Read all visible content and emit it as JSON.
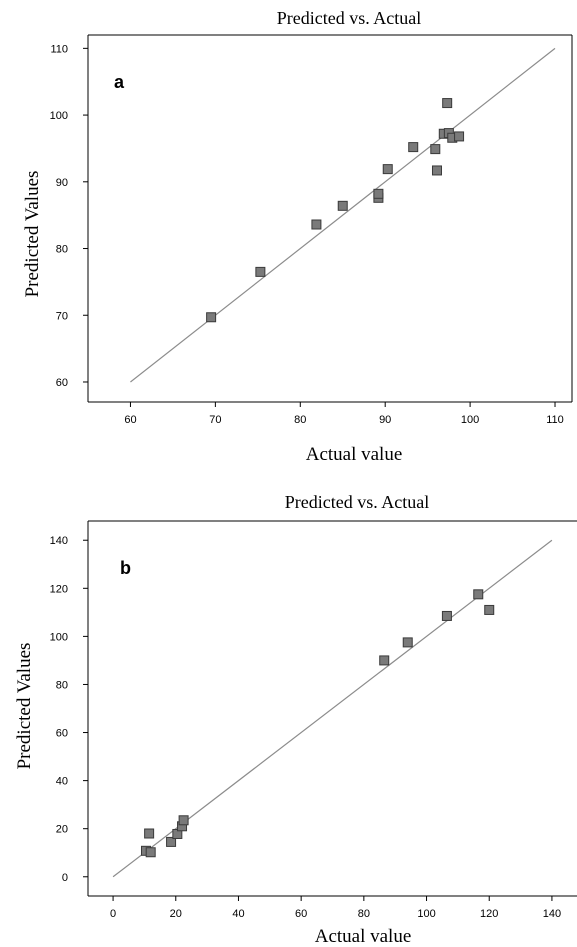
{
  "chart_data": [
    {
      "type": "scatter",
      "panel_label": "a",
      "title": "Predicted vs. Actual",
      "xlabel": "Actual value",
      "ylabel": "Predicted Values",
      "xlim": [
        55,
        112
      ],
      "ylim": [
        57,
        112
      ],
      "xticks": [
        60,
        70,
        80,
        90,
        100,
        110
      ],
      "yticks": [
        60,
        70,
        80,
        90,
        100,
        110
      ],
      "ytick_labels": [
        "60",
        "70",
        "80",
        "90",
        "100",
        "110"
      ],
      "reference_line": {
        "from": [
          60,
          60
        ],
        "to": [
          110,
          110
        ]
      },
      "marker_color": "#7a7a7a",
      "line_color": "#8c8c8c",
      "points": [
        {
          "x": 69.5,
          "y": 69.7
        },
        {
          "x": 75.3,
          "y": 76.5
        },
        {
          "x": 81.9,
          "y": 83.6
        },
        {
          "x": 85.0,
          "y": 86.4
        },
        {
          "x": 89.2,
          "y": 87.6
        },
        {
          "x": 89.2,
          "y": 88.2
        },
        {
          "x": 90.3,
          "y": 91.9
        },
        {
          "x": 93.3,
          "y": 95.2
        },
        {
          "x": 95.9,
          "y": 94.9
        },
        {
          "x": 96.1,
          "y": 91.7
        },
        {
          "x": 96.9,
          "y": 97.2
        },
        {
          "x": 97.3,
          "y": 101.8
        },
        {
          "x": 97.5,
          "y": 97.3
        },
        {
          "x": 97.9,
          "y": 96.6
        },
        {
          "x": 98.7,
          "y": 96.8
        }
      ]
    },
    {
      "type": "scatter",
      "panel_label": "b",
      "title": "Predicted vs. Actual",
      "xlabel": "Actual value",
      "ylabel": "Predicted Values",
      "xlim": [
        -8,
        148
      ],
      "ylim": [
        -8,
        148
      ],
      "xticks": [
        0,
        20,
        40,
        60,
        80,
        100,
        120,
        140
      ],
      "yticks": [
        0,
        20,
        40,
        60,
        80,
        100,
        120,
        140
      ],
      "ytick_labels": [
        "0",
        "20",
        "40",
        "60",
        "80",
        "100",
        "120",
        "140"
      ],
      "reference_line": {
        "from": [
          0,
          0
        ],
        "to": [
          140,
          140
        ]
      },
      "marker_color": "#7a7a7a",
      "line_color": "#8c8c8c",
      "points": [
        {
          "x": 10.5,
          "y": 10.8
        },
        {
          "x": 11.5,
          "y": 18.0
        },
        {
          "x": 12.0,
          "y": 10.2
        },
        {
          "x": 18.5,
          "y": 14.5
        },
        {
          "x": 20.5,
          "y": 17.8
        },
        {
          "x": 22.0,
          "y": 21.0
        },
        {
          "x": 22.5,
          "y": 23.5
        },
        {
          "x": 86.5,
          "y": 90.0
        },
        {
          "x": 94.0,
          "y": 97.5
        },
        {
          "x": 106.5,
          "y": 108.5
        },
        {
          "x": 116.5,
          "y": 117.5
        },
        {
          "x": 120.0,
          "y": 111.0
        }
      ]
    }
  ]
}
